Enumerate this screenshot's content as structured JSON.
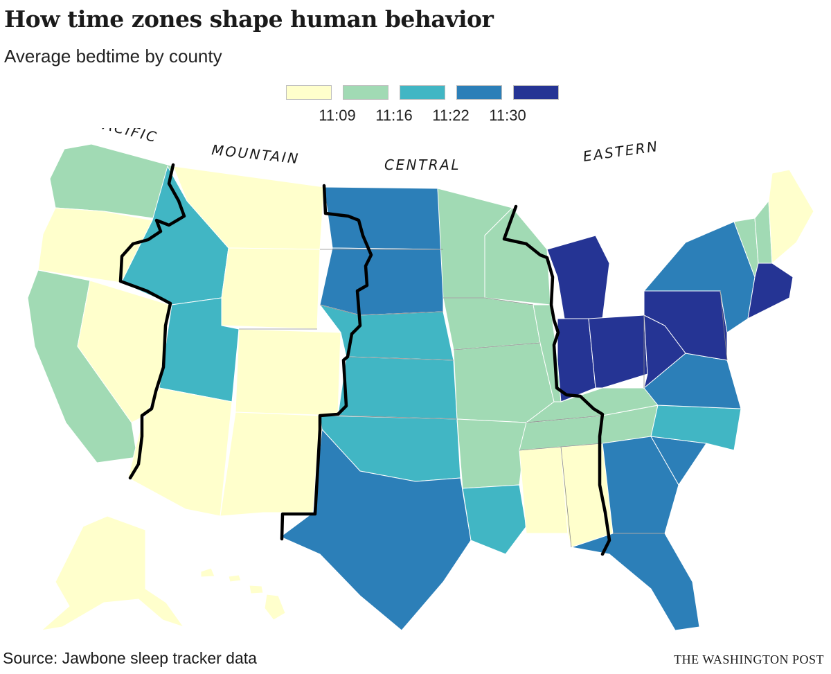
{
  "title": "How time zones shape human behavior",
  "subtitle": "Average bedtime by county",
  "legend": {
    "colors": [
      "#ffffcc",
      "#a1dab4",
      "#41b6c4",
      "#2c7fb8",
      "#253494"
    ],
    "labels": [
      "11:09",
      "11:16",
      "11:22",
      "11:30"
    ]
  },
  "zones": [
    {
      "id": "pacific",
      "label": "PACIFIC"
    },
    {
      "id": "mountain",
      "label": "MOUNTAIN"
    },
    {
      "id": "central",
      "label": "CENTRAL"
    },
    {
      "id": "eastern",
      "label": "EASTERN"
    }
  ],
  "regions": [
    {
      "name": "Washington",
      "level": 1
    },
    {
      "name": "Oregon",
      "level": 0
    },
    {
      "name": "California",
      "level": 1
    },
    {
      "name": "Nevada",
      "level": 0
    },
    {
      "name": "Idaho",
      "level": 2
    },
    {
      "name": "Montana",
      "level": 0
    },
    {
      "name": "Wyoming",
      "level": 0
    },
    {
      "name": "Utah",
      "level": 2
    },
    {
      "name": "Colorado",
      "level": 0
    },
    {
      "name": "Arizona",
      "level": 0
    },
    {
      "name": "New Mexico",
      "level": 0
    },
    {
      "name": "North Dakota",
      "level": 3
    },
    {
      "name": "South Dakota",
      "level": 3
    },
    {
      "name": "Nebraska",
      "level": 2
    },
    {
      "name": "Kansas",
      "level": 2
    },
    {
      "name": "Oklahoma",
      "level": 2
    },
    {
      "name": "Texas",
      "level": 3
    },
    {
      "name": "Minnesota",
      "level": 1
    },
    {
      "name": "Iowa",
      "level": 1
    },
    {
      "name": "Missouri",
      "level": 1
    },
    {
      "name": "Arkansas",
      "level": 1
    },
    {
      "name": "Louisiana",
      "level": 2
    },
    {
      "name": "Wisconsin",
      "level": 1
    },
    {
      "name": "Illinois",
      "level": 1
    },
    {
      "name": "Mississippi",
      "level": 0
    },
    {
      "name": "Alabama",
      "level": 0
    },
    {
      "name": "Tennessee",
      "level": 1
    },
    {
      "name": "Kentucky",
      "level": 1
    },
    {
      "name": "Michigan",
      "level": 4
    },
    {
      "name": "Indiana",
      "level": 4
    },
    {
      "name": "Ohio",
      "level": 4
    },
    {
      "name": "Georgia",
      "level": 3
    },
    {
      "name": "Florida",
      "level": 3
    },
    {
      "name": "South Carolina",
      "level": 3
    },
    {
      "name": "North Carolina",
      "level": 2
    },
    {
      "name": "Virginia",
      "level": 3
    },
    {
      "name": "West Virginia",
      "level": 4
    },
    {
      "name": "Pennsylvania",
      "level": 4
    },
    {
      "name": "New York",
      "level": 3
    },
    {
      "name": "Vermont",
      "level": 1
    },
    {
      "name": "New Hampshire",
      "level": 1
    },
    {
      "name": "Maine",
      "level": 0
    },
    {
      "name": "New England South",
      "level": 4
    },
    {
      "name": "Alaska",
      "level": 0
    },
    {
      "name": "Hawaii",
      "level": 0
    }
  ],
  "source": "Source: Jawbone sleep tracker data",
  "credit": "THE WASHINGTON POST"
}
